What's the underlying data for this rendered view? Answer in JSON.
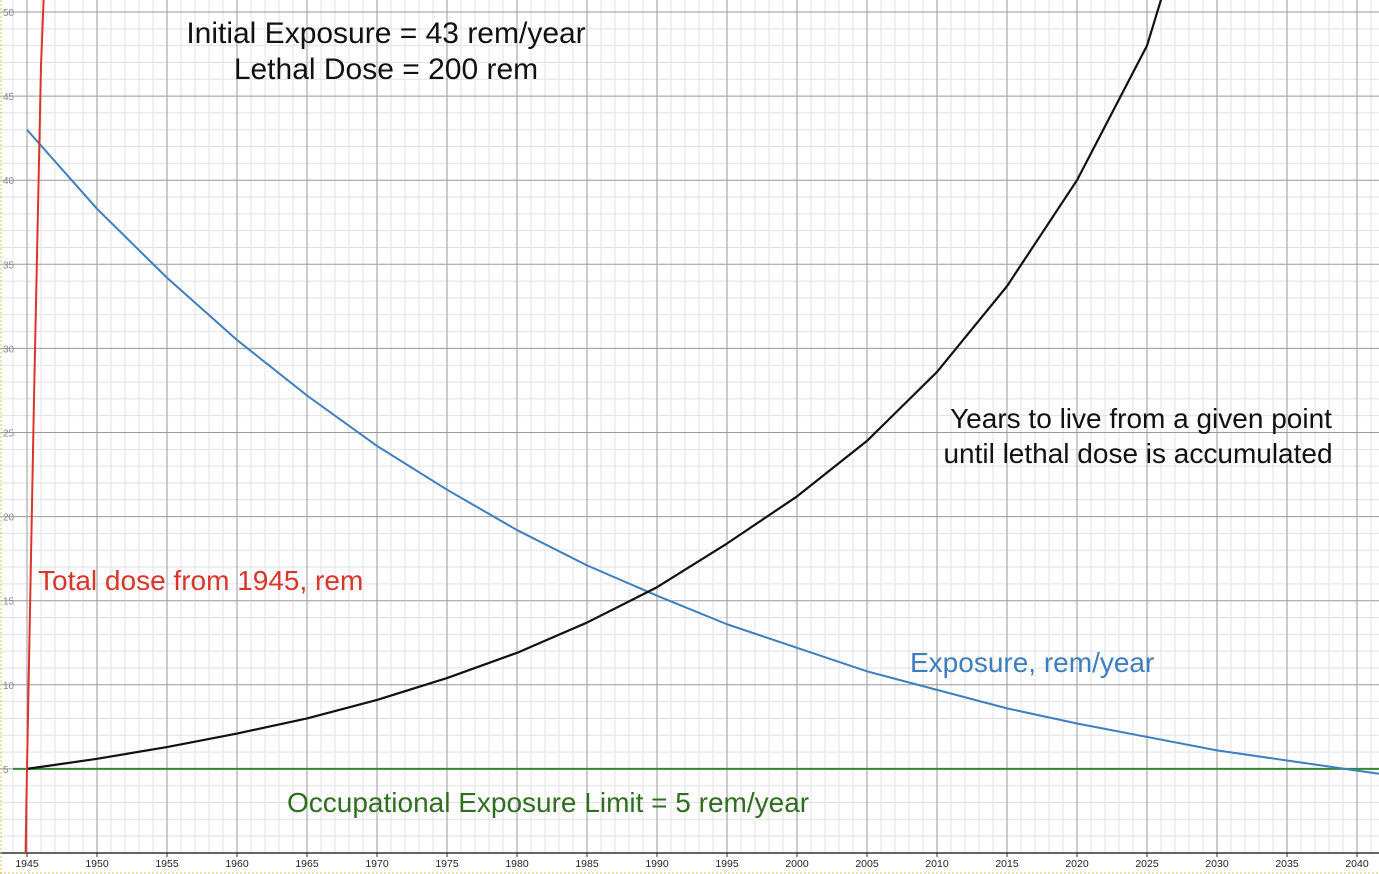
{
  "chart_data": {
    "type": "line",
    "title_lines": [
      "Initial Exposure = 43 rem/year",
      "Lethal Dose = 200 rem"
    ],
    "xlabel": "",
    "ylabel": "",
    "xlim": [
      1944,
      2042.5
    ],
    "ylim": [
      0,
      51
    ],
    "x_ticks": [
      1945,
      1950,
      1955,
      1960,
      1965,
      1970,
      1975,
      1980,
      1985,
      1990,
      1995,
      2000,
      2005,
      2010,
      2015,
      2020,
      2025,
      2030,
      2035,
      2040
    ],
    "y_ticks": [
      5,
      10,
      15,
      20,
      25,
      30,
      35,
      40,
      45,
      50
    ],
    "grid": true,
    "legend": "none",
    "series": [
      {
        "name": "Exposure, rem/year",
        "color": "#3d7ebf",
        "x": [
          1945,
          1950,
          1955,
          1960,
          1965,
          1970,
          1975,
          1980,
          1985,
          1990,
          1995,
          2000,
          2005,
          2010,
          2015,
          2020,
          2025,
          2030,
          2035,
          2040,
          2042.5
        ],
        "y": [
          43.0,
          38.3,
          34.2,
          30.5,
          27.2,
          24.2,
          21.6,
          19.2,
          17.1,
          15.3,
          13.6,
          12.2,
          10.8,
          9.7,
          8.6,
          7.7,
          6.9,
          6.1,
          5.5,
          4.9,
          4.6
        ]
      },
      {
        "name": "Years to live from a given point until lethal dose  is accumulated",
        "color": "#111111",
        "x": [
          1945,
          1950,
          1955,
          1960,
          1965,
          1970,
          1975,
          1980,
          1985,
          1990,
          1995,
          2000,
          2005,
          2010,
          2015,
          2020,
          2025,
          2026.1
        ],
        "y": [
          5.0,
          5.6,
          6.3,
          7.1,
          8.0,
          9.1,
          10.4,
          11.9,
          13.7,
          15.8,
          18.4,
          21.2,
          24.5,
          28.6,
          33.7,
          40.0,
          48.0,
          51.0
        ]
      },
      {
        "name": "Total dose from 1945, rem",
        "color": "#d9352a",
        "x": [
          1944.9,
          1945,
          1945.5,
          1946,
          1946.2
        ],
        "y": [
          0,
          5.0,
          27.0,
          46.8,
          51.0
        ]
      },
      {
        "name": "Occupational Exposure Limit = 5 rem/year",
        "color": "#2f8a2f",
        "x": [
          1944,
          2042.5
        ],
        "y": [
          5,
          5
        ]
      }
    ],
    "annotations": [
      {
        "text": "Total dose from 1945, rem",
        "color": "#d9352a"
      },
      {
        "text": "Exposure, rem/year",
        "color": "#3d7ebf"
      },
      {
        "lines": [
          "Years to live from a given point",
          "until lethal dose  is accumulated"
        ],
        "color": "#111111"
      },
      {
        "text": "Occupational Exposure Limit = 5 rem/year",
        "color": "#2f6e1f"
      }
    ]
  }
}
